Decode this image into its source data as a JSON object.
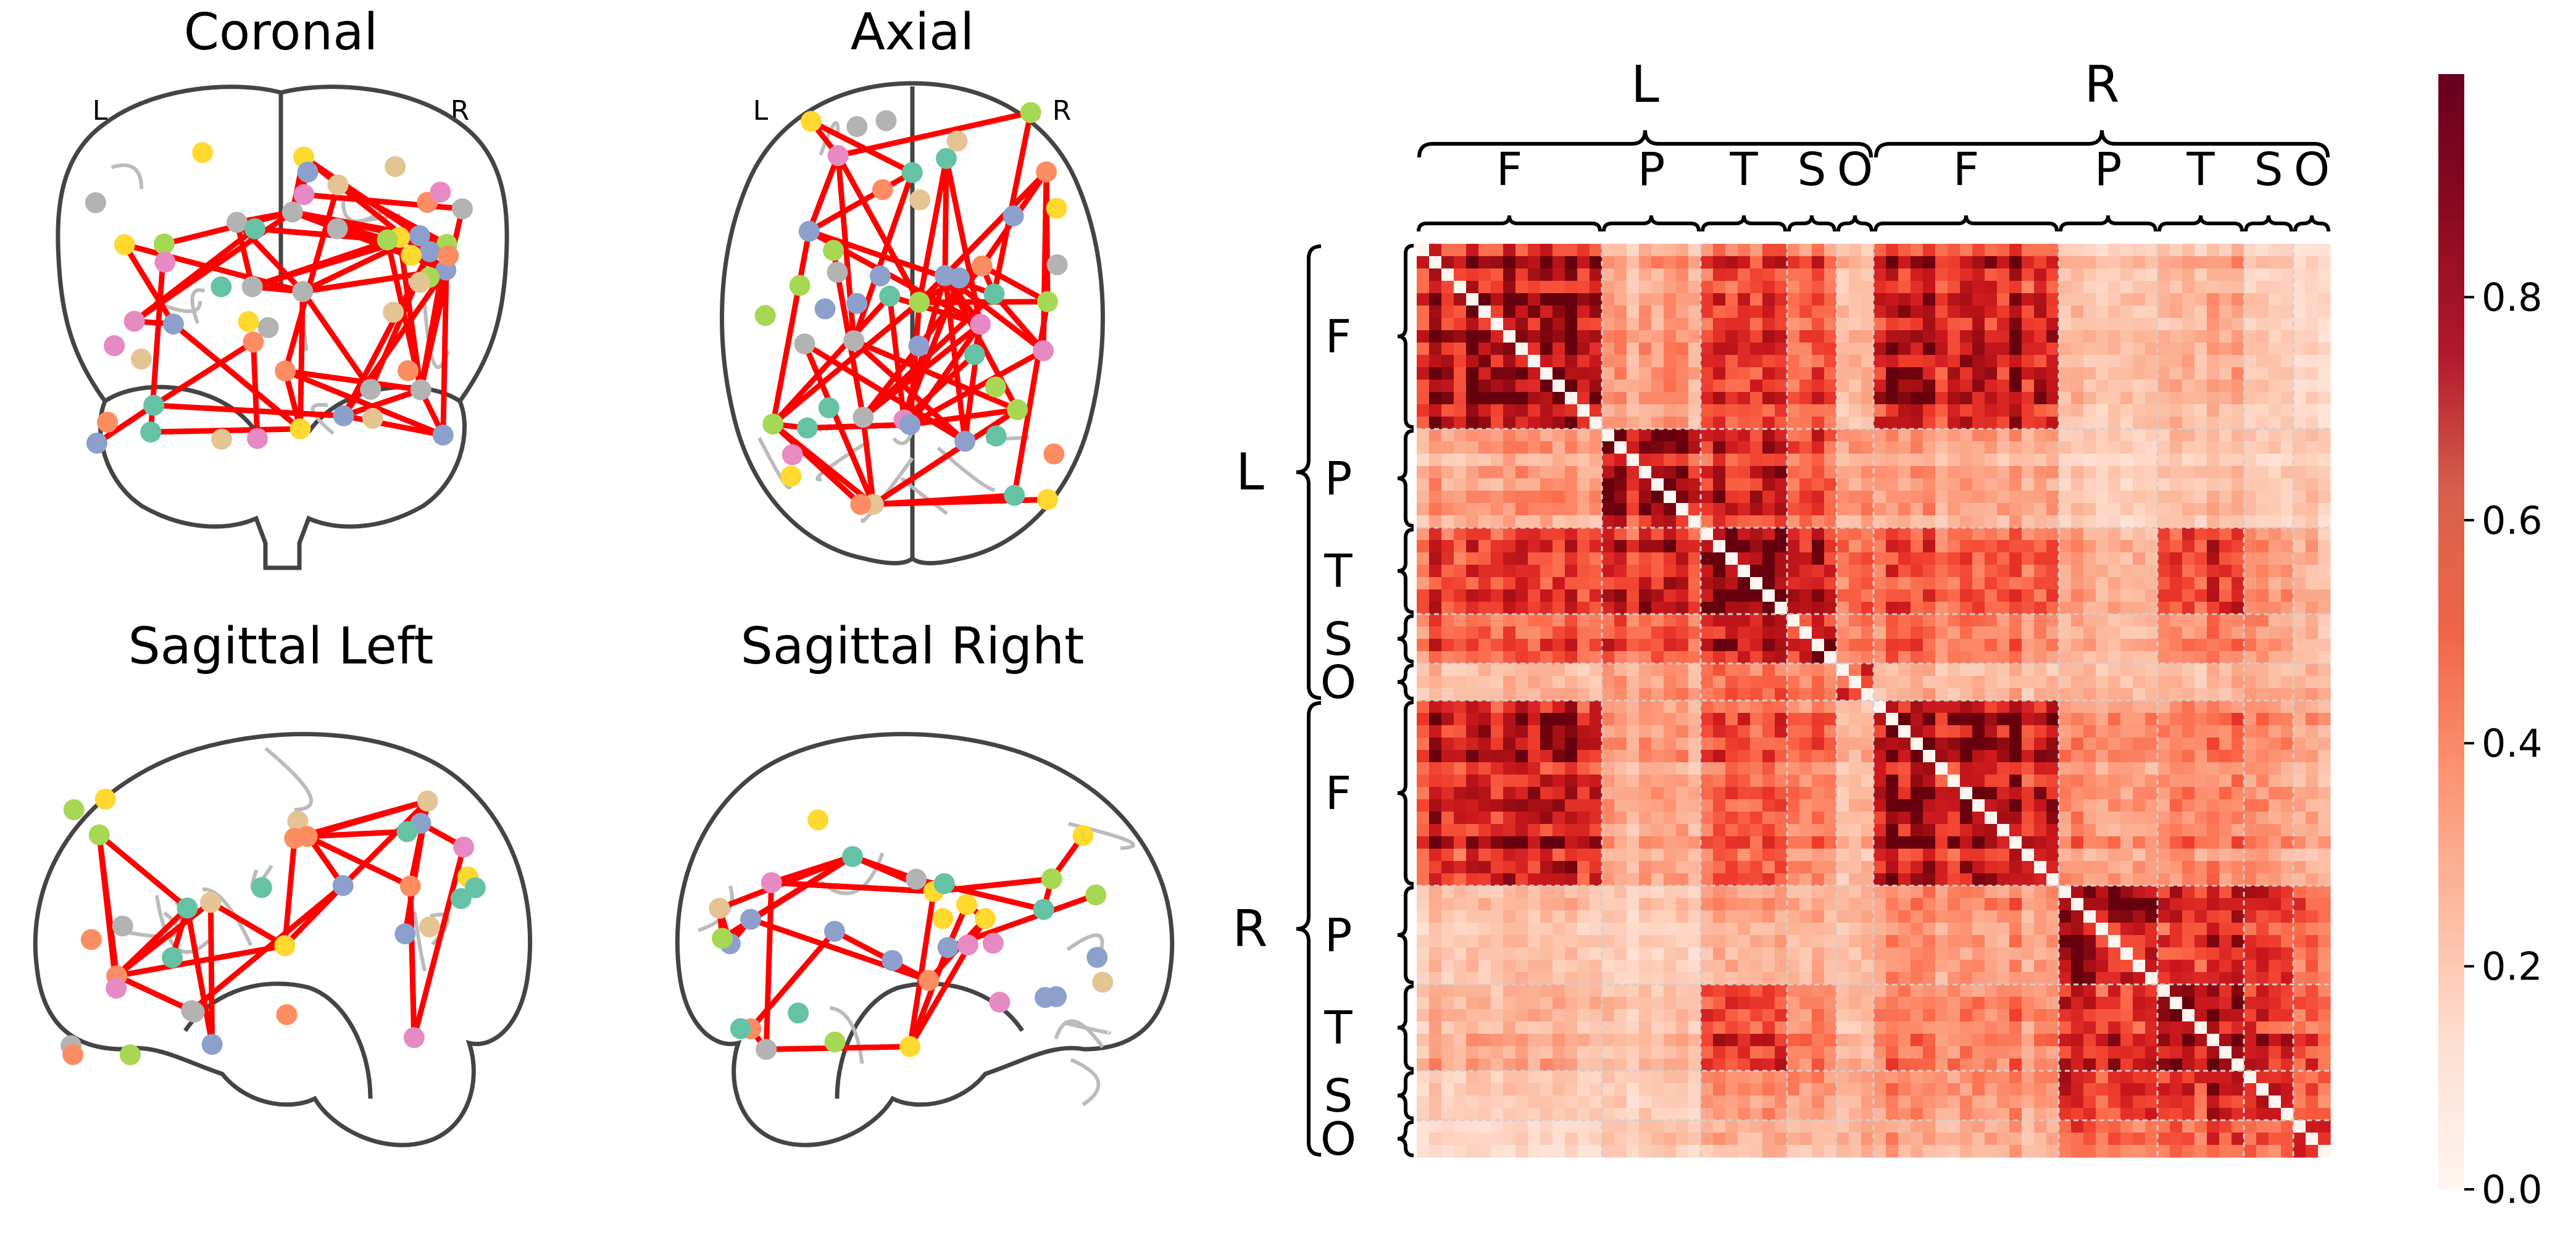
{
  "brain_panels": [
    {
      "title": "Coronal",
      "left_label": "L",
      "right_label": "R"
    },
    {
      "title": "Axial",
      "left_label": "L",
      "right_label": "R"
    },
    {
      "title": "Sagittal Left"
    },
    {
      "title": "Sagittal Right"
    }
  ],
  "region_colors": {
    "F": "#66c2a5",
    "P": "#8da0cb",
    "T": "#fc8d62",
    "S": "#e78ac3",
    "O": "#a6d854",
    "other1": "#ffd92f",
    "other2": "#e5c494",
    "other3": "#b3b3b3"
  },
  "edge_color": "#ff0000",
  "outline_color": "#444444",
  "chart_data": {
    "type": "heatmap",
    "title": "",
    "xlabel": "",
    "ylabel": "",
    "colormap": "Reds",
    "colorbar": {
      "ticks": [
        0.0,
        0.2,
        0.4,
        0.6,
        0.8
      ],
      "tick_labels": [
        "0.0",
        "0.2",
        "0.4",
        "0.6",
        "0.8"
      ],
      "range": [
        0.0,
        1.0
      ]
    },
    "hemispheres": [
      {
        "label": "L",
        "regions": [
          {
            "label": "F",
            "size": 15
          },
          {
            "label": "P",
            "size": 8
          },
          {
            "label": "T",
            "size": 7
          },
          {
            "label": "S",
            "size": 4
          },
          {
            "label": "O",
            "size": 3
          }
        ]
      },
      {
        "label": "R",
        "regions": [
          {
            "label": "F",
            "size": 15
          },
          {
            "label": "P",
            "size": 8
          },
          {
            "label": "T",
            "size": 7
          },
          {
            "label": "S",
            "size": 4
          },
          {
            "label": "O",
            "size": 3
          }
        ]
      }
    ],
    "region_mean_values": [
      [
        0.85,
        0.35,
        0.6,
        0.55,
        0.3,
        0.8,
        0.25,
        0.3,
        0.2,
        0.15
      ],
      [
        0.35,
        0.85,
        0.7,
        0.6,
        0.4,
        0.35,
        0.2,
        0.25,
        0.2,
        0.2
      ],
      [
        0.6,
        0.7,
        0.9,
        0.75,
        0.5,
        0.55,
        0.3,
        0.6,
        0.35,
        0.25
      ],
      [
        0.55,
        0.6,
        0.75,
        0.85,
        0.5,
        0.5,
        0.3,
        0.45,
        0.4,
        0.25
      ],
      [
        0.3,
        0.4,
        0.5,
        0.5,
        0.85,
        0.3,
        0.3,
        0.3,
        0.3,
        0.3
      ],
      [
        0.8,
        0.35,
        0.55,
        0.5,
        0.3,
        0.9,
        0.4,
        0.45,
        0.4,
        0.3
      ],
      [
        0.25,
        0.2,
        0.3,
        0.3,
        0.3,
        0.4,
        0.9,
        0.75,
        0.7,
        0.5
      ],
      [
        0.3,
        0.25,
        0.6,
        0.45,
        0.3,
        0.45,
        0.75,
        0.85,
        0.7,
        0.5
      ],
      [
        0.2,
        0.2,
        0.35,
        0.4,
        0.3,
        0.4,
        0.7,
        0.7,
        0.85,
        0.5
      ],
      [
        0.15,
        0.2,
        0.25,
        0.25,
        0.3,
        0.3,
        0.5,
        0.5,
        0.5,
        0.8
      ]
    ],
    "diagonal_value": 0.0
  }
}
